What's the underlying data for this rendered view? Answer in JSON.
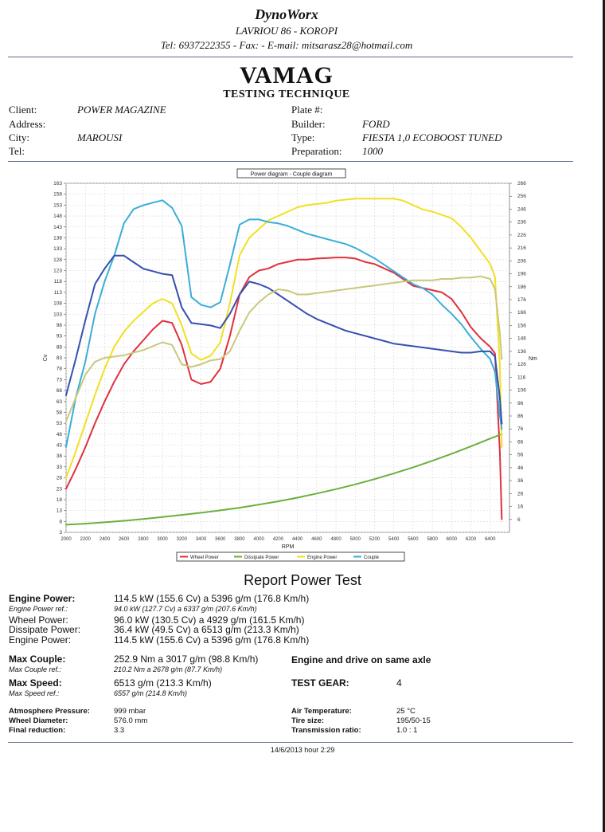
{
  "header": {
    "company": "DynoWorx",
    "address": "LAVRIOU 86 - KOROPI",
    "contact": "Tel: 6937222355 - Fax:  - E-mail: mitsarasz28@hotmail.com",
    "brand": "VAMAG",
    "subtitle": "TESTING TECHNIQUE"
  },
  "info": {
    "client_label": "Client:",
    "client_value": "POWER MAGAZINE",
    "address_label": "Address:",
    "address_value": "",
    "city_label": "City:",
    "city_value": "MAROUSI",
    "tel_label": "Tel:",
    "tel_value": "",
    "plate_label": "Plate #:",
    "plate_value": "",
    "builder_label": "Builder:",
    "builder_value": "FORD",
    "type_label": "Type:",
    "type_value": "FIESTA 1,0 ECOBOOST TUNED",
    "prep_label": "Preparation:",
    "prep_value": "1000"
  },
  "chart_data": {
    "type": "line",
    "title": "Power diagram - Couple diagram",
    "xlabel": "RPM",
    "ylabel": "Cv",
    "y2label": "Nm",
    "xlim": [
      2000,
      6600
    ],
    "ylim": [
      3,
      163
    ],
    "y2lim": [
      -4,
      266
    ],
    "x_ticks": [
      2000,
      2200,
      2400,
      2600,
      2800,
      3000,
      3200,
      3400,
      3600,
      3800,
      4000,
      4200,
      4400,
      4600,
      4800,
      5000,
      5200,
      5400,
      5600,
      5800,
      6000,
      6200,
      6400
    ],
    "y_ticks": [
      3,
      8,
      13,
      18,
      23,
      28,
      33,
      38,
      43,
      48,
      53,
      58,
      63,
      68,
      73,
      78,
      83,
      88,
      93,
      98,
      103,
      108,
      113,
      118,
      123,
      128,
      133,
      138,
      143,
      148,
      153,
      158,
      163
    ],
    "y2_ticks": [
      6,
      16,
      26,
      36,
      46,
      56,
      66,
      76,
      86,
      96,
      106,
      116,
      126,
      136,
      146,
      156,
      166,
      176,
      186,
      196,
      206,
      216,
      226,
      236,
      246,
      256,
      266
    ],
    "grid": true,
    "legend": "bottom",
    "series": [
      {
        "name": "Wheel Power",
        "axis": "left",
        "color": "#e0303e",
        "x": [
          2000,
          2100,
          2200,
          2300,
          2400,
          2500,
          2600,
          2700,
          2800,
          2900,
          3000,
          3100,
          3200,
          3300,
          3400,
          3500,
          3600,
          3700,
          3800,
          3900,
          4000,
          4100,
          4200,
          4300,
          4400,
          4500,
          4600,
          4700,
          4800,
          4900,
          5000,
          5100,
          5200,
          5300,
          5400,
          5500,
          5600,
          5700,
          5800,
          5900,
          6000,
          6100,
          6200,
          6300,
          6400,
          6450,
          6500,
          6520
        ],
        "y": [
          23,
          32,
          42,
          53,
          63,
          72,
          80,
          86,
          91,
          96,
          100,
          99,
          89,
          73,
          71,
          72,
          78,
          93,
          112,
          120,
          123,
          124,
          126,
          127,
          128,
          128,
          128.5,
          128.7,
          129,
          129,
          128.5,
          127,
          126,
          124,
          122,
          119,
          116,
          115,
          114,
          113,
          110,
          104,
          97,
          92,
          88,
          85,
          40,
          9
        ]
      },
      {
        "name": "Dissipate Power",
        "axis": "left",
        "color": "#6ab03c",
        "x": [
          2000,
          2200,
          2400,
          2600,
          2800,
          3000,
          3200,
          3400,
          3600,
          3800,
          4000,
          4200,
          4400,
          4600,
          4800,
          5000,
          5200,
          5400,
          5600,
          5800,
          6000,
          6200,
          6400,
          6520
        ],
        "y": [
          6.5,
          7,
          7.6,
          8.3,
          9.1,
          10,
          11,
          12,
          13.1,
          14.3,
          15.7,
          17.2,
          18.9,
          20.8,
          22.8,
          25,
          27.4,
          30,
          32.8,
          35.8,
          39,
          42.4,
          46,
          48
        ]
      },
      {
        "name": "Engine Power",
        "axis": "left",
        "color": "#f2e020",
        "x": [
          2000,
          2100,
          2200,
          2300,
          2400,
          2500,
          2600,
          2700,
          2800,
          2900,
          3000,
          3100,
          3200,
          3300,
          3400,
          3500,
          3600,
          3700,
          3800,
          3900,
          4000,
          4100,
          4200,
          4300,
          4400,
          4500,
          4600,
          4700,
          4800,
          4900,
          5000,
          5100,
          5200,
          5300,
          5400,
          5500,
          5600,
          5700,
          5800,
          5900,
          6000,
          6100,
          6200,
          6300,
          6400,
          6450,
          6500,
          6520
        ],
        "y": [
          28,
          40,
          53,
          66,
          78,
          88,
          95,
          100,
          104,
          108,
          110,
          108,
          98,
          85,
          82,
          84,
          90,
          108,
          130,
          138,
          142,
          146,
          148,
          150,
          152,
          153,
          153.5,
          154,
          155,
          155.5,
          156,
          156,
          156,
          156,
          156,
          155,
          153,
          151,
          150,
          148.5,
          147,
          143,
          138,
          132,
          126,
          120,
          80,
          42
        ]
      },
      {
        "name": "Couple",
        "axis": "right",
        "color": "#3aaed8",
        "x": [
          2000,
          2100,
          2200,
          2300,
          2400,
          2500,
          2600,
          2700,
          2800,
          2900,
          3000,
          3100,
          3200,
          3300,
          3400,
          3500,
          3600,
          3700,
          3800,
          3900,
          4000,
          4100,
          4200,
          4300,
          4400,
          4500,
          4600,
          4700,
          4800,
          4900,
          5000,
          5100,
          5200,
          5300,
          5400,
          5500,
          5600,
          5700,
          5800,
          5900,
          6000,
          6100,
          6200,
          6300,
          6400,
          6450,
          6500,
          6520
        ],
        "y": [
          62,
          100,
          128,
          165,
          190,
          210,
          235,
          246,
          249,
          251,
          252.9,
          247,
          233,
          178,
          172,
          170,
          174,
          203,
          234,
          238,
          238,
          236,
          235,
          233,
          230,
          227,
          225,
          223,
          221,
          219,
          216,
          212,
          208,
          203,
          198,
          193,
          188,
          185,
          180,
          172,
          165,
          157,
          147,
          138,
          130,
          120,
          86,
          76
        ]
      },
      {
        "name": "Wheel Power (Couple)",
        "axis": "right",
        "color": "#3650b0",
        "x": [
          2000,
          2100,
          2200,
          2300,
          2400,
          2500,
          2600,
          2700,
          2800,
          2900,
          3000,
          3100,
          3200,
          3300,
          3400,
          3500,
          3600,
          3700,
          3800,
          3900,
          4000,
          4100,
          4200,
          4300,
          4400,
          4500,
          4600,
          4700,
          4800,
          4900,
          5000,
          5100,
          5200,
          5300,
          5400,
          5500,
          5600,
          5700,
          5800,
          5900,
          6000,
          6100,
          6200,
          6300,
          6400,
          6450,
          6500,
          6520
        ],
        "y": [
          102,
          130,
          160,
          188,
          200,
          210,
          210,
          205,
          200,
          198,
          196,
          195,
          170,
          158,
          157,
          156,
          154,
          165,
          180,
          190,
          188,
          185,
          180,
          175,
          170,
          165,
          161,
          158,
          155,
          152,
          150,
          148,
          146,
          144,
          142,
          141,
          140,
          139,
          138,
          137,
          136,
          135,
          135,
          136,
          136,
          132,
          100,
          80
        ]
      },
      {
        "name": "Engine Power (Couple)",
        "axis": "right",
        "color": "#c9c87c",
        "x": [
          2000,
          2100,
          2200,
          2300,
          2400,
          2500,
          2600,
          2700,
          2800,
          2900,
          3000,
          3100,
          3200,
          3300,
          3400,
          3500,
          3600,
          3700,
          3800,
          3900,
          4000,
          4100,
          4200,
          4300,
          4400,
          4500,
          4600,
          4700,
          4800,
          4900,
          5000,
          5100,
          5200,
          5300,
          5400,
          5500,
          5600,
          5700,
          5800,
          5900,
          6000,
          6100,
          6200,
          6300,
          6400,
          6450,
          6500,
          6520
        ],
        "y": [
          82,
          100,
          118,
          128,
          131,
          132,
          133,
          135,
          137,
          140,
          143,
          141,
          126,
          124,
          126,
          129,
          130,
          136,
          152,
          166,
          174,
          180,
          184,
          183,
          180,
          180,
          181,
          182,
          183,
          184,
          185,
          186,
          187,
          188,
          189,
          190,
          191,
          191,
          191,
          192,
          192,
          193,
          193,
          194,
          192,
          184,
          150,
          130
        ]
      }
    ],
    "legend_entries": [
      "Wheel Power",
      "Dissipate Power",
      "Engine Power",
      "Couple"
    ]
  },
  "report": {
    "title": "Report Power Test",
    "engine_power_label": "Engine Power:",
    "engine_power_value": "114.5 kW (155.6 Cv) a 5396 g/m (176.8 Km/h)",
    "engine_power_ref_label": "Engine Power ref.:",
    "engine_power_ref_value": "94.0 kW (127.7 Cv) a 6337 g/m (207.6 Km/h)",
    "wheel_power_label": "Wheel Power:",
    "wheel_power_value": "96.0 kW (130.5 Cv) a 4929 g/m (161.5 Km/h)",
    "dissipate_power_label": "Dissipate Power:",
    "dissipate_power_value": "36.4 kW (49.5 Cv) a 6513 g/m (213.3 Km/h)",
    "engine_power2_label": "Engine Power:",
    "engine_power2_value": "114.5 kW (155.6 Cv) a 5396 g/m (176.8 Km/h)",
    "max_couple_label": "Max Couple:",
    "max_couple_value": "252.9 Nm a 3017 g/m (98.8 Km/h)",
    "max_couple_ref_label": "Max Couple ref.:",
    "max_couple_ref_value": "210.2 Nm a 2678 g/m (87.7 Km/h)",
    "max_speed_label": "Max Speed:",
    "max_speed_value": "6513 g/m (213.3 Km/h)",
    "max_speed_ref_label": "Max Speed ref.:",
    "max_speed_ref_value": "6557 g/m (214.8 Km/h)",
    "axle_note": "Engine and drive on same axle",
    "test_gear_label": "TEST GEAR:",
    "test_gear_value": "4",
    "atm_label": "Atmosphere Pressure:",
    "atm_value": "999 mbar",
    "wheel_diam_label": "Wheel Diameter:",
    "wheel_diam_value": "576.0 mm",
    "final_red_label": "Final reduction:",
    "final_red_value": "3.3",
    "air_temp_label": "Air Temperature:",
    "air_temp_value": "25 °C",
    "tire_label": "Tire size:",
    "tire_value": "195/50-15",
    "trans_label": "Transmission ratio:",
    "trans_value": "1.0 : 1"
  },
  "footer": {
    "timestamp": "14/6/2013 hour 2:29"
  }
}
